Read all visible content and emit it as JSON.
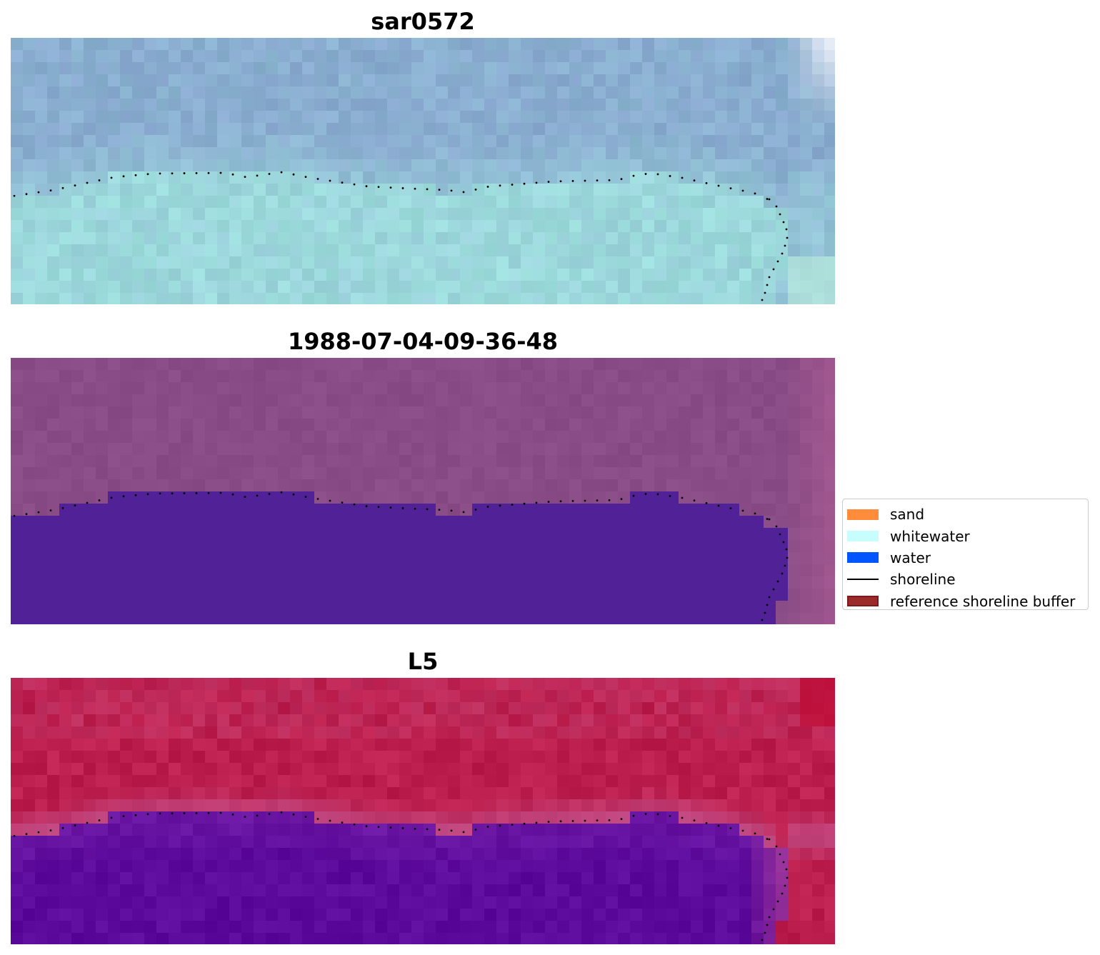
{
  "panels": [
    {
      "title": "sar0572",
      "palette": "sar"
    },
    {
      "title": "1988-07-04-09-36-48",
      "palette": "classified"
    },
    {
      "title": "L5",
      "palette": "mndwi"
    }
  ],
  "legend": {
    "items": [
      {
        "label": "sand",
        "color": "#ff8c3a",
        "kind": "patch"
      },
      {
        "label": "whitewater",
        "color": "#c8fdfd",
        "kind": "patch"
      },
      {
        "label": "water",
        "color": "#0055ff",
        "kind": "patch"
      },
      {
        "label": "shoreline",
        "color": "#000000",
        "kind": "line"
      },
      {
        "label": "reference shoreline buffer",
        "color": "#9b2a2a",
        "edge": "#7a1a1a",
        "kind": "patch"
      }
    ]
  },
  "colors": {
    "sar_water": "#8aaed0",
    "sar_land": "#9cd8dc",
    "classified_land": "#8a4c86",
    "classified_water": "#512198",
    "mndwi_land": "#bc1f4e",
    "mndwi_water": "#5c0a9c",
    "shoreline_dots": "#000000"
  }
}
